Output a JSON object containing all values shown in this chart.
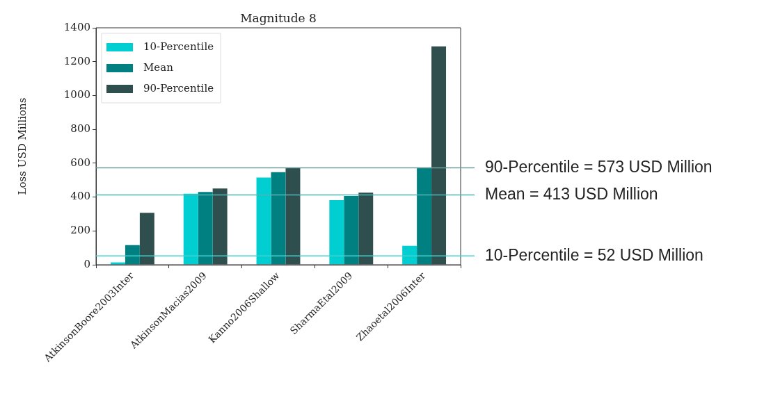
{
  "chart_data": {
    "type": "bar",
    "title": "Magnitude 8",
    "ylabel": "Loss USD Millions",
    "categories": [
      "AtkinsonBoore2003Inter",
      "AtkinsonMacias2009",
      "Kanno2006Shallow",
      "SharmaEtal2009",
      "Zhaoetal2006Inter"
    ],
    "series": [
      {
        "name": "10-Percentile",
        "color": "#00ced1",
        "values": [
          14,
          420,
          515,
          382,
          112
        ]
      },
      {
        "name": "Mean",
        "color": "#008080",
        "values": [
          116,
          430,
          547,
          406,
          573
        ]
      },
      {
        "name": "90-Percentile",
        "color": "#2f4f4f",
        "values": [
          307,
          451,
          573,
          426,
          1290
        ]
      }
    ],
    "ylim": [
      0,
      1400
    ],
    "yticks": [
      0,
      200,
      400,
      600,
      800,
      1000,
      1200,
      1400
    ],
    "ref_lines": [
      {
        "axis": "y",
        "value": 573,
        "label": "90-Percentile = 573 USD Million",
        "color": "#6e9e9a"
      },
      {
        "axis": "y",
        "value": 413,
        "label": "Mean = 413 USD Million",
        "color": "#52b4b4"
      },
      {
        "axis": "y",
        "value": 52,
        "label": "10-Percentile = 52 USD Million",
        "color": "#45d2d2"
      }
    ],
    "legend": "top left"
  }
}
